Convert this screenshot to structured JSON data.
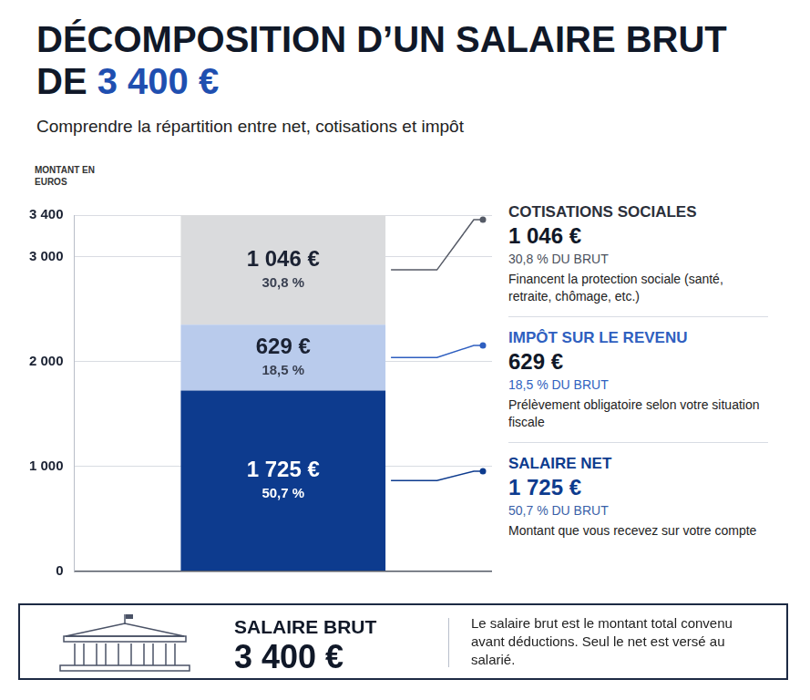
{
  "chart_data": {
    "type": "bar",
    "stacked": true,
    "title": "DÉCOMPOSITION D’UN SALAIRE BRUT DE 3 400 €",
    "subtitle": "Comprendre la répartition entre net, cotisations et impôt",
    "y_label": "MONTANT EN EUROS",
    "categories": [
      null
    ],
    "series": [
      {
        "name": "SALAIRE NET",
        "color": "#0d3b8e",
        "values": [
          1725
        ],
        "value_labels": [
          "1 725 €"
        ],
        "shares": [
          50.7
        ],
        "share_labels": [
          "50,7 %"
        ],
        "share_notes": [
          "50,7 % DU BRUT"
        ],
        "description": "Montant que vous recevez sur votre compte"
      },
      {
        "name": "IMPÔT SUR LE REVENU",
        "color": "#b9cbec",
        "values": [
          629
        ],
        "value_labels": [
          "629 €"
        ],
        "shares": [
          18.5
        ],
        "share_labels": [
          "18,5 %"
        ],
        "share_notes": [
          "18,5 % DU BRUT"
        ],
        "description": "Prélèvement obligatoire selon votre situation fiscale"
      },
      {
        "name": "COTISATIONS SOCIALES",
        "color": "#dadbdd",
        "values": [
          1046
        ],
        "value_labels": [
          "1 046 €"
        ],
        "shares": [
          30.8
        ],
        "share_labels": [
          "30,8 %"
        ],
        "share_notes": [
          "30,8 % DU BRUT"
        ],
        "description": "Financent la protection sociale (santé, retraite, chômage, etc.)"
      }
    ],
    "ylim": [
      0,
      3400
    ],
    "yticks": [
      0,
      {
        "value": 1000,
        "label": "1 000"
      },
      {
        "value": 2000,
        "label": "2 000"
      },
      {
        "value": 3000,
        "label": "3 000"
      },
      {
        "value": 3400,
        "label": "3 400"
      }
    ],
    "grid": true,
    "data_labels": true,
    "total": {
      "label": "SALAIRE BRUT",
      "value": 3400,
      "value_label": "3 400 €",
      "description": "Le salaire brut est le montant total convenu avant déductions. Seul le net est versé au salarié."
    }
  }
}
